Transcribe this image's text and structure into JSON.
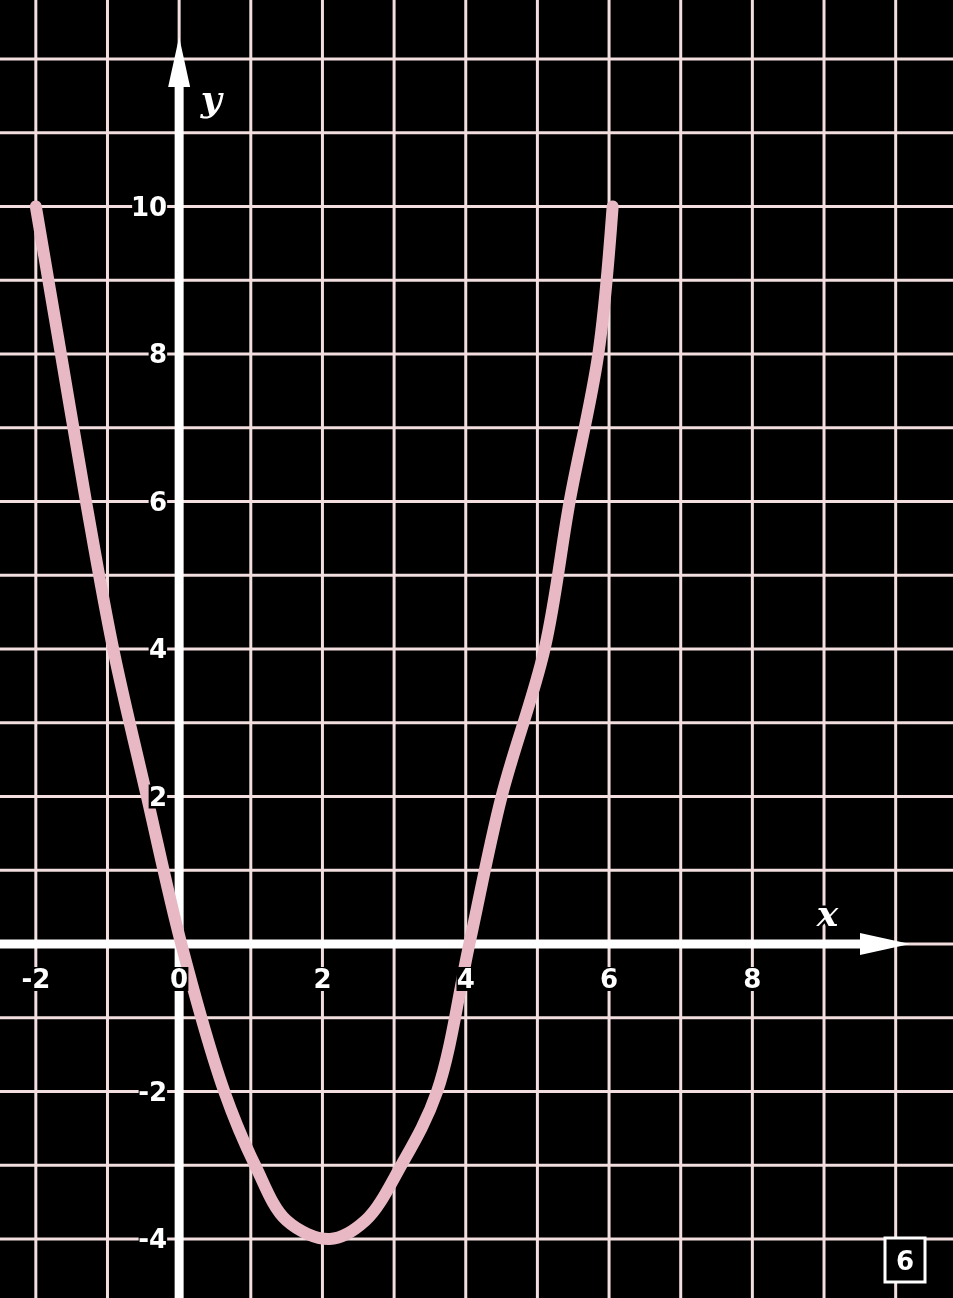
{
  "chart_data": {
    "type": "line",
    "xlabel": "x",
    "ylabel": "y",
    "x": [
      -2.0,
      -1.65,
      -1.3,
      -0.92,
      -0.45,
      0.03,
      0.63,
      1.06,
      1.5,
      2.1,
      2.6,
      3.1,
      3.6,
      4.05,
      4.5,
      5.1,
      5.45,
      5.85,
      6.05
    ],
    "series": [
      {
        "color": "#e8b8c4",
        "values": [
          10,
          8,
          6,
          4,
          2,
          0,
          -2,
          -3,
          -3.75,
          -4,
          -3.75,
          -3,
          -2,
          0,
          2,
          4,
          6,
          8,
          10
        ]
      }
    ],
    "xlim": [
      -2.5,
      10.8
    ],
    "ylim": [
      -4.8,
      12.8
    ],
    "xticks": [
      -2,
      {
        "value": -1,
        "label": null
      },
      0,
      {
        "value": 1,
        "label": null
      },
      2,
      {
        "value": 3,
        "label": null
      },
      4,
      {
        "value": 5,
        "label": null
      },
      6,
      {
        "value": 7,
        "label": null
      },
      8,
      {
        "value": 9,
        "label": null
      },
      {
        "value": 10,
        "label": null
      }
    ],
    "yticks": [
      -4,
      {
        "value": -3,
        "label": null
      },
      -2,
      {
        "value": -1,
        "label": null
      },
      {
        "value": 0,
        "label": null
      },
      {
        "value": 1,
        "label": null
      },
      2,
      {
        "value": 3,
        "label": null
      },
      4,
      {
        "value": 5,
        "label": null
      },
      6,
      {
        "value": 7,
        "label": null
      },
      8,
      {
        "value": 9,
        "label": null
      },
      10,
      {
        "value": 11,
        "label": null
      },
      {
        "value": 12,
        "label": null
      }
    ],
    "grid": true,
    "marker": "none",
    "line_style": "solid",
    "annotations": [
      "6"
    ]
  }
}
